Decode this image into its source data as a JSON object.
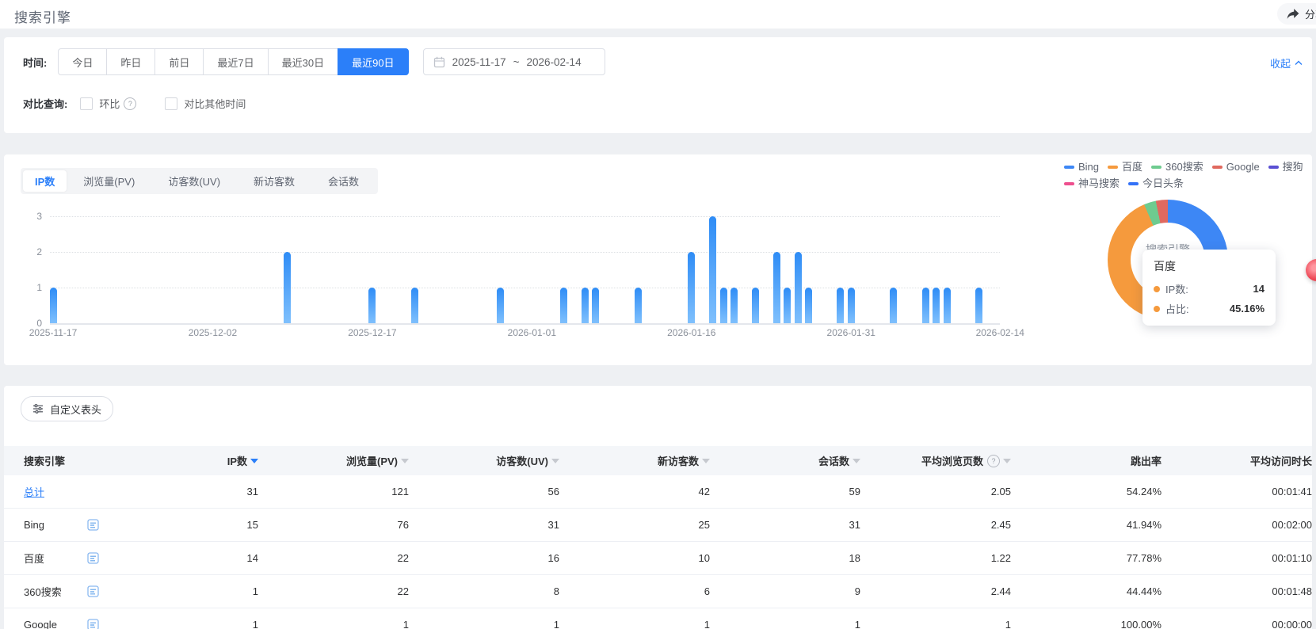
{
  "header": {
    "title": "搜索引擎",
    "share_label": "分享"
  },
  "filters": {
    "time_label": "时间:",
    "time_buttons": [
      "今日",
      "昨日",
      "前日",
      "最近7日",
      "最近30日",
      "最近90日"
    ],
    "active_time_button": "最近90日",
    "date_range": {
      "start": "2025-11-17",
      "separator": "~",
      "end": "2026-02-14"
    },
    "collapse_label": "收起",
    "compare_label": "对比查询:",
    "compare_options": [
      "环比",
      "对比其他时间"
    ]
  },
  "chart": {
    "tabs": [
      "IP数",
      "浏览量(PV)",
      "访客数(UV)",
      "新访客数",
      "会话数"
    ],
    "active_tab": "IP数"
  },
  "legend": [
    {
      "label": "Bing",
      "color": "#3d87f5"
    },
    {
      "label": "百度",
      "color": "#f59a3d"
    },
    {
      "label": "360搜索",
      "color": "#6ecb8f"
    },
    {
      "label": "Google",
      "color": "#e0695f"
    },
    {
      "label": "搜狗",
      "color": "#5a4fd3"
    },
    {
      "label": "神马搜索",
      "color": "#ee4f8e"
    },
    {
      "label": "今日头条",
      "color": "#3472f7"
    }
  ],
  "donut": {
    "center_label": "搜索引擎"
  },
  "tooltip": {
    "title": "百度",
    "marker_color": "#f59a3d",
    "rows": [
      {
        "label": "IP数:",
        "value": "14"
      },
      {
        "label": "占比:",
        "value": "45.16%"
      }
    ]
  },
  "chart_data": [
    {
      "type": "bar",
      "title": "IP数",
      "x_start": "2025-11-17",
      "x_end": "2026-02-14",
      "x_ticks": [
        "2025-11-17",
        "2025-12-02",
        "2025-12-17",
        "2026-01-01",
        "2026-01-16",
        "2026-01-31",
        "2026-02-14"
      ],
      "ylim": [
        0,
        3
      ],
      "y_ticks": [
        0,
        1,
        2,
        3
      ],
      "points": [
        {
          "date": "2025-11-17",
          "value": 1
        },
        {
          "date": "2025-12-09",
          "value": 2
        },
        {
          "date": "2025-12-17",
          "value": 1
        },
        {
          "date": "2025-12-21",
          "value": 1
        },
        {
          "date": "2025-12-29",
          "value": 1
        },
        {
          "date": "2026-01-04",
          "value": 1
        },
        {
          "date": "2026-01-06",
          "value": 1
        },
        {
          "date": "2026-01-07",
          "value": 1
        },
        {
          "date": "2026-01-11",
          "value": 1
        },
        {
          "date": "2026-01-16",
          "value": 2
        },
        {
          "date": "2026-01-18",
          "value": 3
        },
        {
          "date": "2026-01-19",
          "value": 1
        },
        {
          "date": "2026-01-20",
          "value": 1
        },
        {
          "date": "2026-01-22",
          "value": 1
        },
        {
          "date": "2026-01-24",
          "value": 2
        },
        {
          "date": "2026-01-25",
          "value": 1
        },
        {
          "date": "2026-01-26",
          "value": 2
        },
        {
          "date": "2026-01-27",
          "value": 1
        },
        {
          "date": "2026-01-30",
          "value": 1
        },
        {
          "date": "2026-01-31",
          "value": 1
        },
        {
          "date": "2026-02-04",
          "value": 1
        },
        {
          "date": "2026-02-07",
          "value": 1
        },
        {
          "date": "2026-02-08",
          "value": 1
        },
        {
          "date": "2026-02-09",
          "value": 1
        },
        {
          "date": "2026-02-12",
          "value": 1
        }
      ]
    },
    {
      "type": "pie",
      "title": "搜索引擎 IP数占比",
      "series": [
        {
          "name": "Bing",
          "value": 15
        },
        {
          "name": "百度",
          "value": 14
        },
        {
          "name": "360搜索",
          "value": 1
        },
        {
          "name": "Google",
          "value": 1
        }
      ],
      "hovered": {
        "name": "百度",
        "ip": "14",
        "share": "45.16%"
      }
    }
  ],
  "table": {
    "customize_label": "自定义表头",
    "columns": [
      {
        "label": "搜索引擎",
        "sort": "none"
      },
      {
        "label": "IP数",
        "sort": "active"
      },
      {
        "label": "浏览量(PV)",
        "sort": "idle"
      },
      {
        "label": "访客数(UV)",
        "sort": "idle"
      },
      {
        "label": "新访客数",
        "sort": "idle"
      },
      {
        "label": "会话数",
        "sort": "idle"
      },
      {
        "label": "平均浏览页数",
        "sort": "idle",
        "help": true
      },
      {
        "label": "跳出率",
        "sort": "none"
      },
      {
        "label": "平均访问时长",
        "sort": "none"
      }
    ],
    "rows": [
      {
        "name": "总计",
        "is_total": true,
        "values": [
          "31",
          "121",
          "56",
          "42",
          "59",
          "2.05",
          "54.24%",
          "00:01:41"
        ]
      },
      {
        "name": "Bing",
        "is_total": false,
        "values": [
          "15",
          "76",
          "31",
          "25",
          "31",
          "2.45",
          "41.94%",
          "00:02:00"
        ]
      },
      {
        "name": "百度",
        "is_total": false,
        "values": [
          "14",
          "22",
          "16",
          "10",
          "18",
          "1.22",
          "77.78%",
          "00:01:10"
        ]
      },
      {
        "name": "360搜索",
        "is_total": false,
        "values": [
          "1",
          "22",
          "8",
          "6",
          "9",
          "2.44",
          "44.44%",
          "00:01:48"
        ]
      },
      {
        "name": "Google",
        "is_total": false,
        "values": [
          "1",
          "1",
          "1",
          "1",
          "1",
          "1",
          "100.00%",
          "00:00:00"
        ]
      }
    ]
  }
}
